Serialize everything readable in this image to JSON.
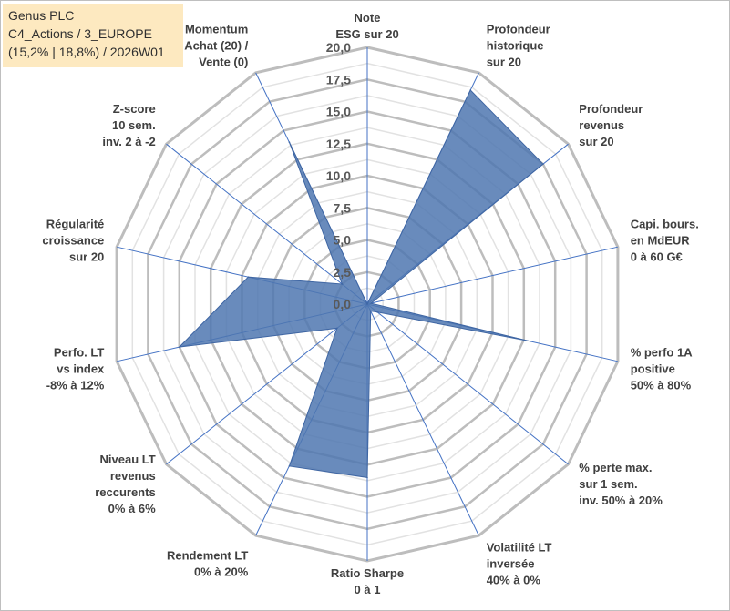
{
  "info": {
    "company": "Genus PLC",
    "portfolio": "C4_Actions / 3_EUROPE",
    "params": "(15,2% | 18,8%) / 2026W01"
  },
  "colors": {
    "fill": "#4f77b0",
    "stroke": "#3f66a3",
    "axis": "#4472c4",
    "grid": "#c8c8c8",
    "background": "#ffffff"
  },
  "chart_data": {
    "type": "radar",
    "title": "",
    "range": [
      0,
      20
    ],
    "ticks": [
      "0,0",
      "2,5",
      "5,0",
      "7,5",
      "10,0",
      "12,5",
      "15,0",
      "17,5",
      "20,0"
    ],
    "grid": true,
    "legend": "none",
    "axes": [
      [
        "Note",
        "ESG sur 20"
      ],
      [
        "Profondeur",
        "historique",
        "sur 20"
      ],
      [
        "Profondeur",
        "revenus",
        "sur 20"
      ],
      [
        "Capi. bours.",
        "en MdEUR",
        "0 à 60 G€"
      ],
      [
        "% perfo 1A",
        "positive",
        "50% à 80%"
      ],
      [
        "% perte max.",
        "sur 1 sem.",
        "inv. 50% à 20%"
      ],
      [
        "Volatilité LT",
        "inversée",
        "40% à 0%"
      ],
      [
        "Ratio Sharpe",
        "0 à 1"
      ],
      [
        "Rendement LT",
        "0% à 20%"
      ],
      [
        "Niveau LT",
        "revenus",
        "reccurents",
        "0% à 6%"
      ],
      [
        "Perfo. LT",
        "vs index",
        "-8% à 12%"
      ],
      [
        "Régularité",
        "croissance",
        "sur 20"
      ],
      [
        "Z-score",
        "10 sem.",
        "inv. 2 à -2"
      ],
      [
        "Momentum",
        "Achat (20) /",
        "Vente (0)"
      ]
    ],
    "values": [
      0,
      18.5,
      17.5,
      0.3,
      13.0,
      1.0,
      0.6,
      13.5,
      14.0,
      3.0,
      15.0,
      9.5,
      2.5,
      14.0
    ]
  }
}
